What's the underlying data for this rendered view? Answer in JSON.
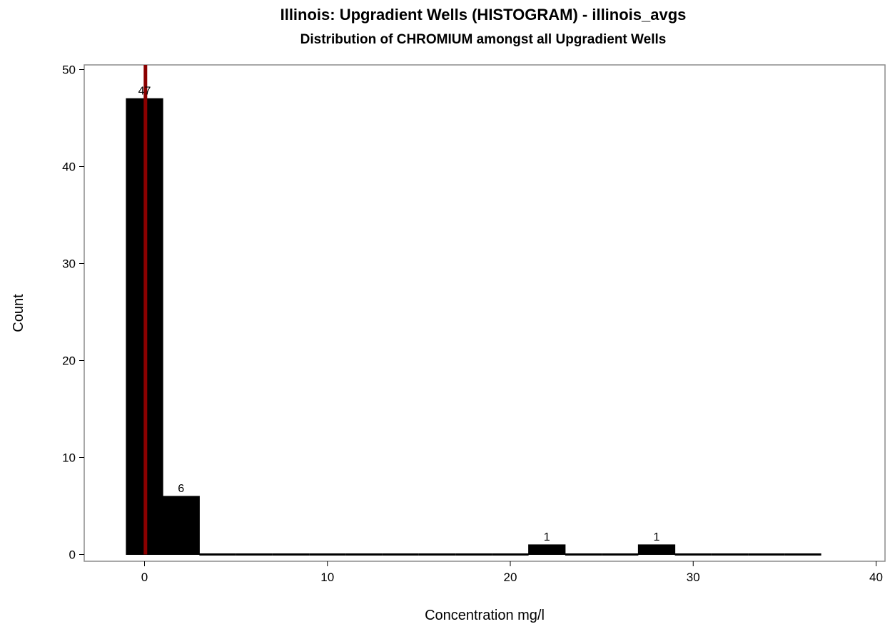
{
  "chart_data": {
    "type": "bar",
    "title": "Illinois: Upgradient Wells (HISTOGRAM) - illinois_avgs",
    "subtitle": "Distribution of CHROMIUM amongst all Upgradient Wells",
    "xlabel": "Concentration mg/l",
    "ylabel": "Count",
    "xlim": [
      -3.3,
      40.3
    ],
    "ylim": [
      0,
      50
    ],
    "xticks": [
      0,
      10,
      20,
      30,
      40
    ],
    "yticks": [
      0,
      10,
      20,
      30,
      40,
      50
    ],
    "bin_width": 2,
    "bins": [
      {
        "center": 0,
        "count": 47
      },
      {
        "center": 2,
        "count": 6
      },
      {
        "center": 4,
        "count": 0
      },
      {
        "center": 6,
        "count": 0
      },
      {
        "center": 8,
        "count": 0
      },
      {
        "center": 10,
        "count": 0
      },
      {
        "center": 12,
        "count": 0
      },
      {
        "center": 14,
        "count": 0
      },
      {
        "center": 16,
        "count": 0
      },
      {
        "center": 18,
        "count": 0
      },
      {
        "center": 20,
        "count": 0
      },
      {
        "center": 22,
        "count": 1
      },
      {
        "center": 24,
        "count": 0
      },
      {
        "center": 26,
        "count": 0
      },
      {
        "center": 28,
        "count": 1
      },
      {
        "center": 30,
        "count": 0
      },
      {
        "center": 32,
        "count": 0
      },
      {
        "center": 34,
        "count": 0
      },
      {
        "center": 36,
        "count": 0
      }
    ],
    "reference_line": {
      "x": 0.05,
      "color": "#8b0000"
    },
    "bar_color": "#000000",
    "grid": false,
    "legend": "none"
  }
}
